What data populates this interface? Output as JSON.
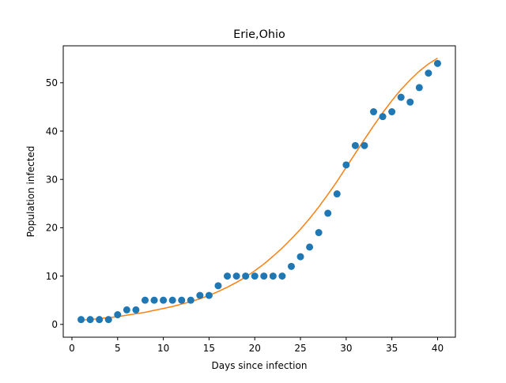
{
  "chart_data": {
    "type": "scatter",
    "title": "Erie,Ohio",
    "xlabel": "Days since infection",
    "ylabel": "Population infected",
    "xlim": [
      -0.95,
      41.95
    ],
    "ylim": [
      -2.65,
      57.65
    ],
    "xticks": [
      0,
      5,
      10,
      15,
      20,
      25,
      30,
      35,
      40
    ],
    "xtick_labels": [
      "0",
      "5",
      "10",
      "15",
      "20",
      "25",
      "30",
      "35",
      "40"
    ],
    "yticks": [
      0,
      10,
      20,
      30,
      40,
      50
    ],
    "ytick_labels": [
      "0",
      "10",
      "20",
      "30",
      "40",
      "50"
    ],
    "grid": false,
    "legend": "none",
    "series": [
      {
        "kind": "scatter",
        "color": "#1f77b4",
        "x": [
          1,
          2,
          3,
          4,
          5,
          6,
          7,
          8,
          9,
          10,
          11,
          12,
          13,
          14,
          15,
          16,
          17,
          18,
          19,
          20,
          21,
          22,
          23,
          24,
          25,
          26,
          27,
          28,
          29,
          30,
          31,
          32,
          33,
          34,
          35,
          36,
          37,
          38,
          39,
          40
        ],
        "y": [
          1,
          1,
          1,
          1,
          2,
          3,
          3,
          5,
          5,
          5,
          5,
          5,
          5,
          6,
          6,
          8,
          10,
          10,
          10,
          10,
          10,
          10,
          10,
          12,
          14,
          16,
          19,
          23,
          27,
          33,
          37,
          37,
          44,
          43,
          44,
          47,
          46,
          49,
          52,
          54
        ]
      },
      {
        "kind": "line",
        "color": "#ff7f0e",
        "x": [
          1,
          2,
          3,
          4,
          5,
          6,
          7,
          8,
          9,
          10,
          11,
          12,
          13,
          14,
          15,
          16,
          17,
          18,
          19,
          20,
          21,
          22,
          23,
          24,
          25,
          26,
          27,
          28,
          29,
          30,
          31,
          32,
          33,
          34,
          35,
          36,
          37,
          38,
          39,
          40
        ],
        "y": [
          0.9,
          1.0,
          1.2,
          1.4,
          1.6,
          1.9,
          2.2,
          2.5,
          2.9,
          3.3,
          3.7,
          4.2,
          4.7,
          5.3,
          6.0,
          6.8,
          7.7,
          8.7,
          9.8,
          11.1,
          12.5,
          14.1,
          15.8,
          17.7,
          19.7,
          21.9,
          24.3,
          26.9,
          29.6,
          32.5,
          35.4,
          38.3,
          41.1,
          43.8,
          46.3,
          48.6,
          50.6,
          52.4,
          53.9,
          55.1
        ]
      }
    ]
  }
}
